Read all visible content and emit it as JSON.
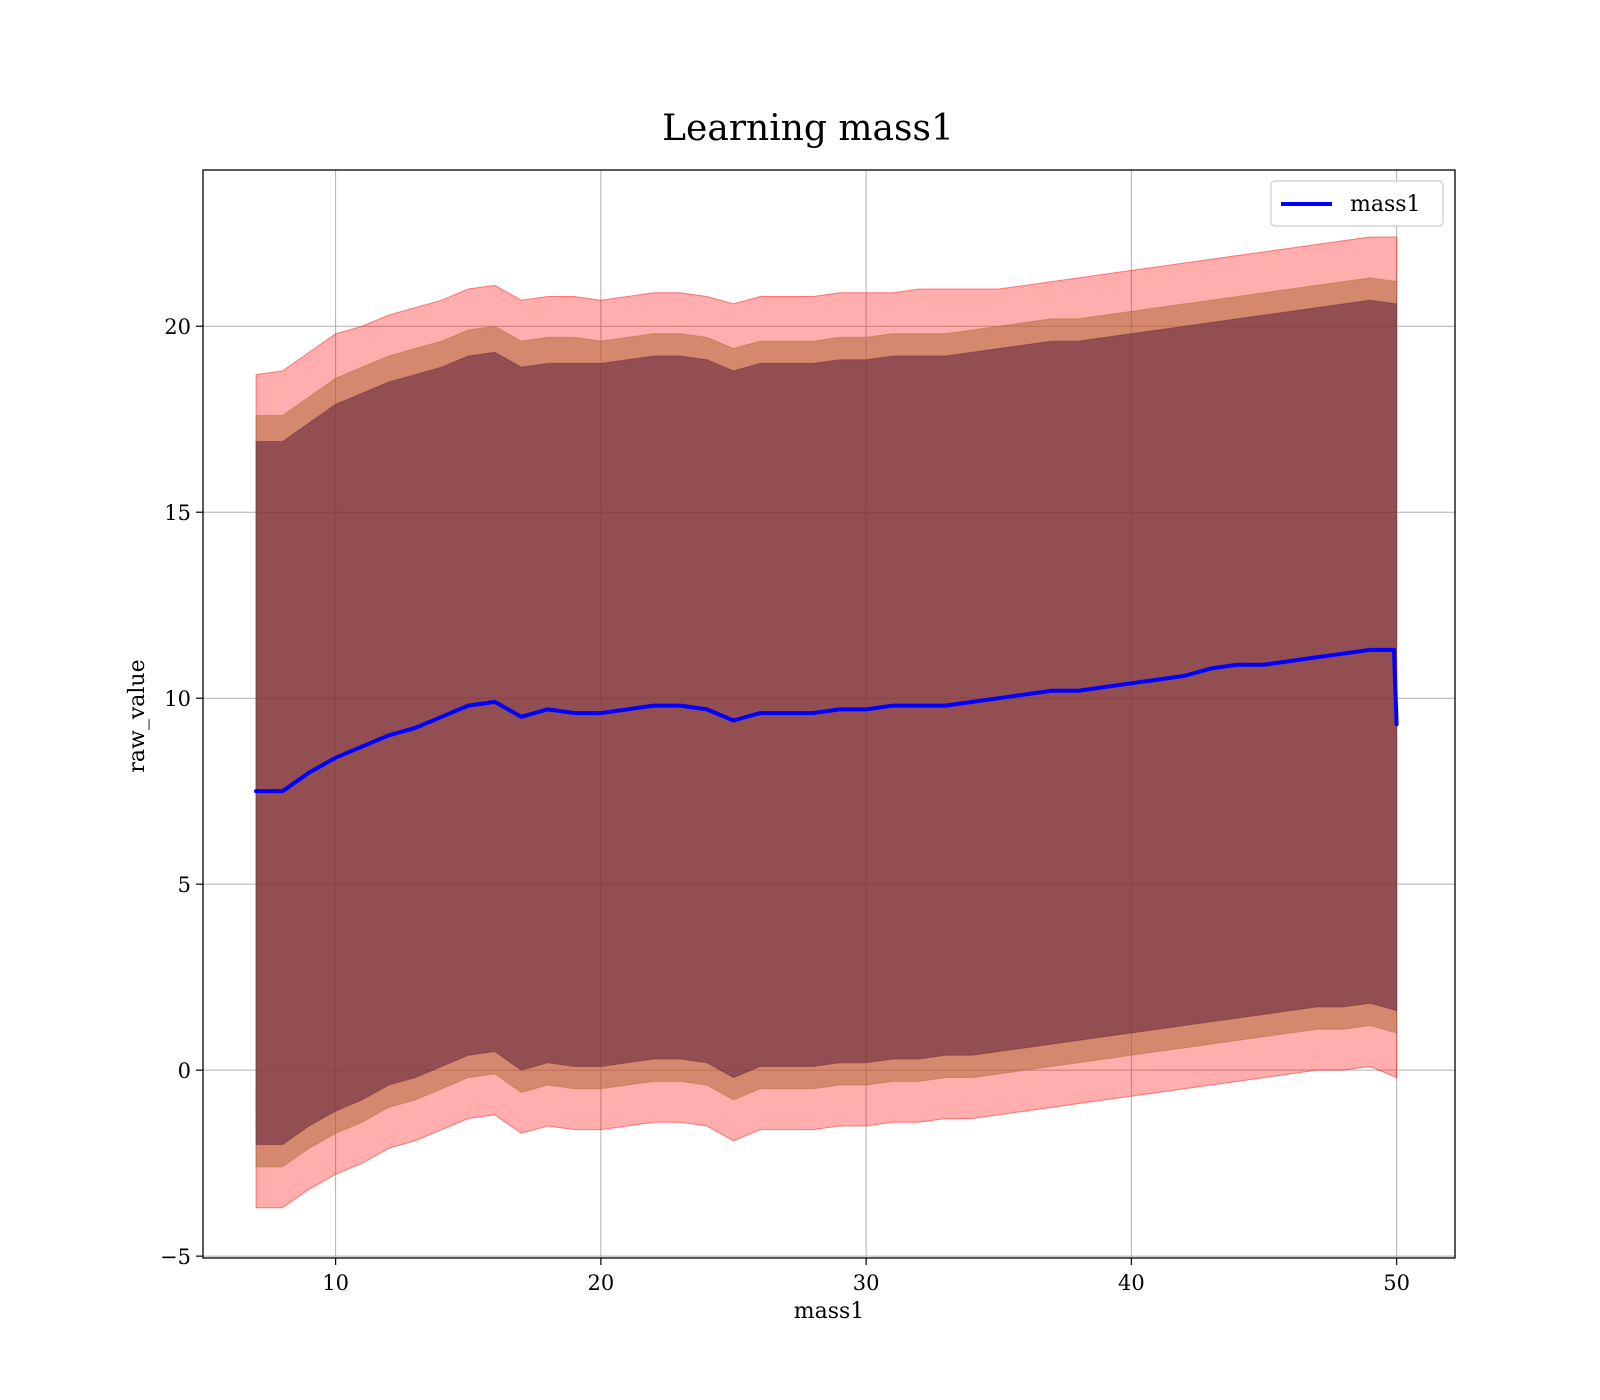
{
  "chart_data": {
    "type": "area",
    "title": "Learning mass1",
    "xlabel": "mass1",
    "ylabel": "raw_value",
    "xlim": [
      5,
      52.2
    ],
    "ylim": [
      -5.05,
      24.2
    ],
    "x_ticks": [
      10,
      20,
      30,
      40,
      50
    ],
    "y_ticks": [
      -5,
      0,
      5,
      10,
      15,
      20
    ],
    "x_tick_labels": [
      "10",
      "20",
      "30",
      "40",
      "50"
    ],
    "y_tick_labels": [
      "−5",
      "0",
      "5",
      "10",
      "15",
      "20"
    ],
    "grid": true,
    "legend": {
      "position": "top-right",
      "entries": [
        "mass1"
      ]
    },
    "colors": {
      "line": "#0000ff",
      "band_outer": "#ff0000",
      "band_middle": "#b06a3a",
      "band_inner": "#6b2a3f"
    },
    "series": [
      {
        "name": "mass1",
        "x": [
          7,
          8,
          9,
          10,
          11,
          12,
          13,
          14,
          15,
          16,
          17,
          18,
          19,
          20,
          21,
          22,
          23,
          24,
          25,
          26,
          27,
          28,
          29,
          30,
          31,
          32,
          33,
          34,
          35,
          36,
          37,
          38,
          39,
          40,
          41,
          42,
          43,
          44,
          45,
          46,
          47,
          48,
          49,
          49.9,
          50
        ],
        "y": [
          7.5,
          7.5,
          8.0,
          8.4,
          8.7,
          9.0,
          9.2,
          9.5,
          9.8,
          9.9,
          9.5,
          9.7,
          9.6,
          9.6,
          9.7,
          9.8,
          9.8,
          9.7,
          9.4,
          9.6,
          9.6,
          9.6,
          9.7,
          9.7,
          9.8,
          9.8,
          9.8,
          9.9,
          10.0,
          10.1,
          10.2,
          10.2,
          10.3,
          10.4,
          10.5,
          10.6,
          10.8,
          10.9,
          10.9,
          11.0,
          11.1,
          11.2,
          11.3,
          11.3,
          9.3
        ]
      }
    ],
    "bands": [
      {
        "x": [
          7,
          8,
          9,
          10,
          11,
          12,
          13,
          14,
          15,
          16,
          17,
          18,
          19,
          20,
          21,
          22,
          23,
          24,
          25,
          26,
          27,
          28,
          29,
          30,
          31,
          32,
          33,
          34,
          35,
          36,
          37,
          38,
          39,
          40,
          41,
          42,
          43,
          44,
          45,
          46,
          47,
          48,
          49,
          50
        ],
        "upper": [
          18.7,
          18.8,
          19.3,
          19.8,
          20.0,
          20.3,
          20.5,
          20.7,
          21.0,
          21.1,
          20.7,
          20.8,
          20.8,
          20.7,
          20.8,
          20.9,
          20.9,
          20.8,
          20.6,
          20.8,
          20.8,
          20.8,
          20.9,
          20.9,
          20.9,
          21.0,
          21.0,
          21.0,
          21.0,
          21.1,
          21.2,
          21.3,
          21.4,
          21.5,
          21.6,
          21.7,
          21.8,
          21.9,
          22.0,
          22.1,
          22.2,
          22.3,
          22.4,
          22.4
        ],
        "lower": [
          -3.7,
          -3.7,
          -3.2,
          -2.8,
          -2.5,
          -2.1,
          -1.9,
          -1.6,
          -1.3,
          -1.2,
          -1.7,
          -1.5,
          -1.6,
          -1.6,
          -1.5,
          -1.4,
          -1.4,
          -1.5,
          -1.9,
          -1.6,
          -1.6,
          -1.6,
          -1.5,
          -1.5,
          -1.4,
          -1.4,
          -1.3,
          -1.3,
          -1.2,
          -1.1,
          -1.0,
          -0.9,
          -0.8,
          -0.7,
          -0.6,
          -0.5,
          -0.4,
          -0.3,
          -0.2,
          -0.1,
          0.0,
          0.0,
          0.1,
          -0.2
        ]
      },
      {
        "x": [
          7,
          8,
          9,
          10,
          11,
          12,
          13,
          14,
          15,
          16,
          17,
          18,
          19,
          20,
          21,
          22,
          23,
          24,
          25,
          26,
          27,
          28,
          29,
          30,
          31,
          32,
          33,
          34,
          35,
          36,
          37,
          38,
          39,
          40,
          41,
          42,
          43,
          44,
          45,
          46,
          47,
          48,
          49,
          50
        ],
        "upper": [
          17.6,
          17.6,
          18.1,
          18.6,
          18.9,
          19.2,
          19.4,
          19.6,
          19.9,
          20.0,
          19.6,
          19.7,
          19.7,
          19.6,
          19.7,
          19.8,
          19.8,
          19.7,
          19.4,
          19.6,
          19.6,
          19.6,
          19.7,
          19.7,
          19.8,
          19.8,
          19.8,
          19.9,
          20.0,
          20.1,
          20.2,
          20.2,
          20.3,
          20.4,
          20.5,
          20.6,
          20.7,
          20.8,
          20.9,
          21.0,
          21.1,
          21.2,
          21.3,
          21.2
        ],
        "lower": [
          -2.6,
          -2.6,
          -2.1,
          -1.7,
          -1.4,
          -1.0,
          -0.8,
          -0.5,
          -0.2,
          -0.1,
          -0.6,
          -0.4,
          -0.5,
          -0.5,
          -0.4,
          -0.3,
          -0.3,
          -0.4,
          -0.8,
          -0.5,
          -0.5,
          -0.5,
          -0.4,
          -0.4,
          -0.3,
          -0.3,
          -0.2,
          -0.2,
          -0.1,
          0.0,
          0.1,
          0.2,
          0.3,
          0.4,
          0.5,
          0.6,
          0.7,
          0.8,
          0.9,
          1.0,
          1.1,
          1.1,
          1.2,
          1.0
        ]
      },
      {
        "x": [
          7,
          8,
          9,
          10,
          11,
          12,
          13,
          14,
          15,
          16,
          17,
          18,
          19,
          20,
          21,
          22,
          23,
          24,
          25,
          26,
          27,
          28,
          29,
          30,
          31,
          32,
          33,
          34,
          35,
          36,
          37,
          38,
          39,
          40,
          41,
          42,
          43,
          44,
          45,
          46,
          47,
          48,
          49,
          50
        ],
        "upper": [
          16.9,
          16.9,
          17.4,
          17.9,
          18.2,
          18.5,
          18.7,
          18.9,
          19.2,
          19.3,
          18.9,
          19.0,
          19.0,
          19.0,
          19.1,
          19.2,
          19.2,
          19.1,
          18.8,
          19.0,
          19.0,
          19.0,
          19.1,
          19.1,
          19.2,
          19.2,
          19.2,
          19.3,
          19.4,
          19.5,
          19.6,
          19.6,
          19.7,
          19.8,
          19.9,
          20.0,
          20.1,
          20.2,
          20.3,
          20.4,
          20.5,
          20.6,
          20.7,
          20.6
        ],
        "lower": [
          -2.0,
          -2.0,
          -1.5,
          -1.1,
          -0.8,
          -0.4,
          -0.2,
          0.1,
          0.4,
          0.5,
          0.0,
          0.2,
          0.1,
          0.1,
          0.2,
          0.3,
          0.3,
          0.2,
          -0.2,
          0.1,
          0.1,
          0.1,
          0.2,
          0.2,
          0.3,
          0.3,
          0.4,
          0.4,
          0.5,
          0.6,
          0.7,
          0.8,
          0.9,
          1.0,
          1.1,
          1.2,
          1.3,
          1.4,
          1.5,
          1.6,
          1.7,
          1.7,
          1.8,
          1.6
        ]
      }
    ]
  }
}
